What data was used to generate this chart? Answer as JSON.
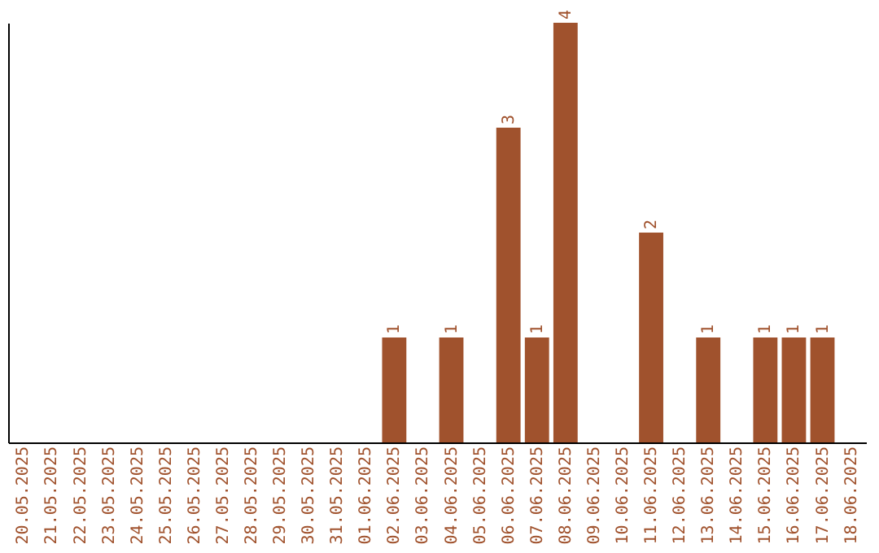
{
  "chart_data": {
    "type": "bar",
    "categories": [
      "20.05.2025",
      "21.05.2025",
      "22.05.2025",
      "23.05.2025",
      "24.05.2025",
      "25.05.2025",
      "26.05.2025",
      "27.05.2025",
      "28.05.2025",
      "29.05.2025",
      "30.05.2025",
      "31.05.2025",
      "01.06.2025",
      "02.06.2025",
      "03.06.2025",
      "04.06.2025",
      "05.06.2025",
      "06.06.2025",
      "07.06.2025",
      "08.06.2025",
      "09.06.2025",
      "10.06.2025",
      "11.06.2025",
      "12.06.2025",
      "13.06.2025",
      "14.06.2025",
      "15.06.2025",
      "16.06.2025",
      "17.06.2025",
      "18.06.2025"
    ],
    "values": [
      null,
      null,
      null,
      null,
      null,
      null,
      null,
      null,
      null,
      null,
      null,
      null,
      null,
      1,
      null,
      1,
      null,
      3,
      1,
      4,
      null,
      null,
      2,
      null,
      1,
      null,
      1,
      1,
      1,
      null
    ],
    "data_labels": true,
    "color": "#a0522d"
  }
}
